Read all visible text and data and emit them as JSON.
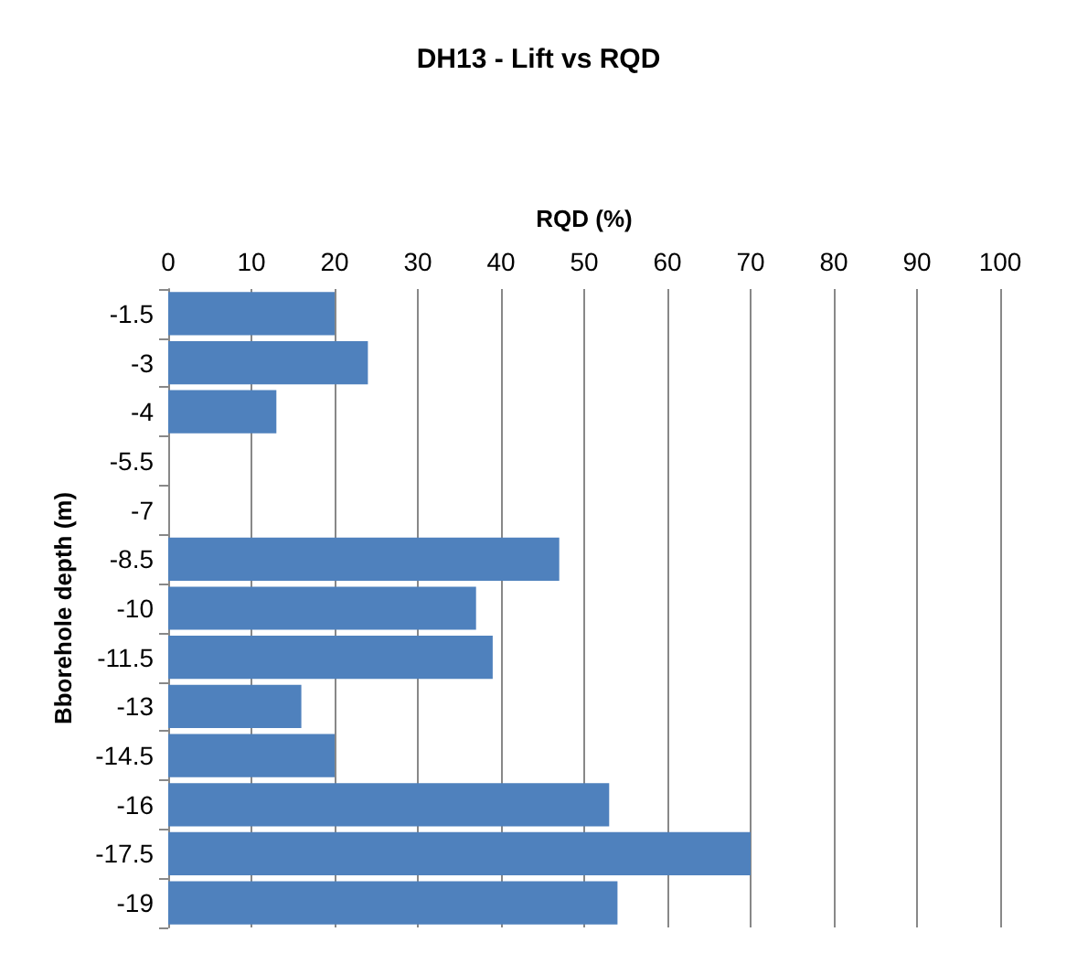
{
  "chart_data": {
    "type": "bar",
    "orientation": "horizontal",
    "title": "DH13 - Lift vs RQD",
    "xlabel": "RQD (%)",
    "ylabel": "Bborehole depth (m)",
    "categories": [
      "-1.5",
      "-3",
      "-4",
      "-5.5",
      "-7",
      "-8.5",
      "-10",
      "-11.5",
      "-13",
      "-14.5",
      "-16",
      "-17.5",
      "-19"
    ],
    "values": [
      20,
      24,
      13,
      null,
      null,
      47,
      37,
      39,
      16,
      20,
      53,
      70,
      54
    ],
    "color": "#4f81bd",
    "xlim": [
      0,
      100
    ],
    "xticks": [
      0,
      10,
      20,
      30,
      40,
      50,
      60,
      70,
      80,
      90,
      100
    ],
    "grid": "x"
  }
}
